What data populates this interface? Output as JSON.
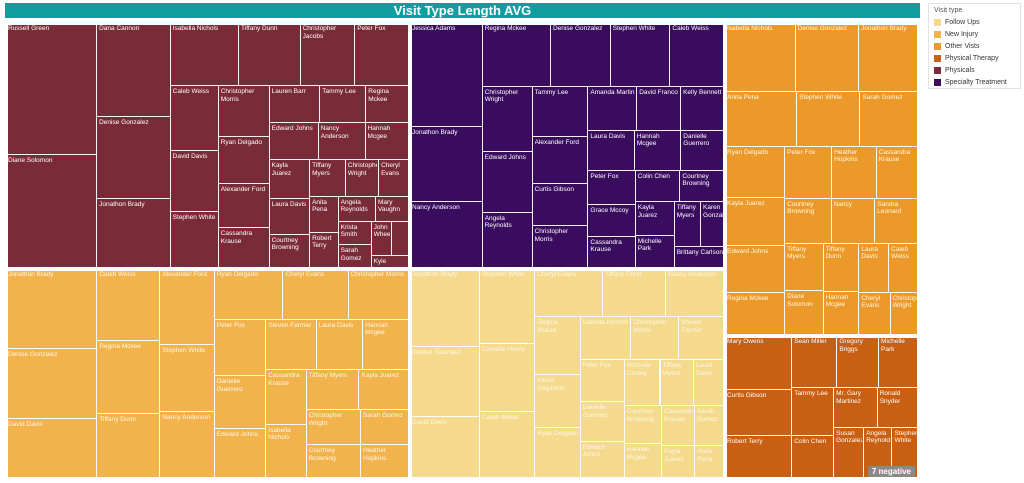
{
  "chart_data": {
    "type": "treemap",
    "title": "Visit Type Length AVG",
    "legend": {
      "title": "Visit type",
      "position": "right",
      "entries": [
        {
          "label": "Follow Ups",
          "color": "#f5d98c"
        },
        {
          "label": "New Injury",
          "color": "#f2b34d"
        },
        {
          "label": "Other Vists",
          "color": "#eb9a2a"
        },
        {
          "label": "Physical Therapy",
          "color": "#c85f12"
        },
        {
          "label": "Physicals",
          "color": "#7a2b38"
        },
        {
          "label": "Specialty Treatment",
          "color": "#3a0c5e"
        }
      ]
    },
    "annotation": "7 negative",
    "groups": [
      {
        "name": "Physicals",
        "color": "#7a2b38",
        "weight": 0.27,
        "items": [
          {
            "label": "Russell Green",
            "value": 14
          },
          {
            "label": "Diane Solomon",
            "value": 12
          },
          {
            "label": "Dana Cannon",
            "value": 8
          },
          {
            "label": "Denise Gonzalez",
            "value": 7
          },
          {
            "label": "Jonathon Brady",
            "value": 6
          },
          {
            "label": "Isabella Nichols",
            "value": 5
          },
          {
            "label": "Tiffany Dunn",
            "value": 4.5
          },
          {
            "label": "Christopher Jacobs",
            "value": 4
          },
          {
            "label": "Peter Fox",
            "value": 4
          },
          {
            "label": "Caleb Weiss",
            "value": 3.6
          },
          {
            "label": "David Davis",
            "value": 3.4
          },
          {
            "label": "Stephen White",
            "value": 3.2
          },
          {
            "label": "Christopher Morris",
            "value": 3.0
          },
          {
            "label": "Ryan Delgado",
            "value": 2.8
          },
          {
            "label": "Alexander Ford",
            "value": 2.6
          },
          {
            "label": "Cassandra Krause",
            "value": 2.4
          },
          {
            "label": "Lauren Barr",
            "value": 2.2
          },
          {
            "label": "Tammy Lee",
            "value": 2.0
          },
          {
            "label": "Regina Mckee",
            "value": 1.9
          },
          {
            "label": "Edward Johns",
            "value": 2.1
          },
          {
            "label": "Nancy Anderson",
            "value": 2.0
          },
          {
            "label": "Hannah Mcgee",
            "value": 1.9
          },
          {
            "label": "Kayla Juarez",
            "value": 1.8
          },
          {
            "label": "Laura Davis",
            "value": 1.7
          },
          {
            "label": "Courtney Browning",
            "value": 1.6
          },
          {
            "label": "Tiffany Myers",
            "value": 1.5
          },
          {
            "label": "Christopher Wright",
            "value": 1.4
          },
          {
            "label": "Cheryl Evans",
            "value": 1.3
          },
          {
            "label": "Anita Pena",
            "value": 1.2
          },
          {
            "label": "Robert Terry",
            "value": 1.2
          },
          {
            "label": "Angela Reynolds",
            "value": 1.1
          },
          {
            "label": "Mary Vaughn",
            "value": 1.0
          },
          {
            "label": "Krista Smith",
            "value": 0.9
          },
          {
            "label": "Sarah Gomez",
            "value": 0.9
          },
          {
            "label": "John Wheeler",
            "value": 0.8
          },
          {
            "label": "Sandra Leonard",
            "value": 0.7
          },
          {
            "label": "Kyle",
            "value": 0.6
          }
        ]
      },
      {
        "name": "Specialty Treatment",
        "color": "#3a0c5e",
        "weight": 0.17,
        "items": [
          {
            "label": "Jessica Adams",
            "value": 7
          },
          {
            "label": "Jonathon Brady",
            "value": 5
          },
          {
            "label": "Nancy Anderson",
            "value": 4.5
          },
          {
            "label": "Regina Mckee",
            "value": 4
          },
          {
            "label": "Denise Gonzalez",
            "value": 3.5
          },
          {
            "label": "Stephen White",
            "value": 3.5
          },
          {
            "label": "Caleb Weiss",
            "value": 3.2
          },
          {
            "label": "Christopher Wright",
            "value": 3.0
          },
          {
            "label": "Edward Johns",
            "value": 2.8
          },
          {
            "label": "Angela Reynolds",
            "value": 2.6
          },
          {
            "label": "Tammy Lee",
            "value": 2.6
          },
          {
            "label": "Alexander Ford",
            "value": 2.4
          },
          {
            "label": "Curtis Gibson",
            "value": 2.2
          },
          {
            "label": "Christopher Morris",
            "value": 2.2
          },
          {
            "label": "Amanda Martin",
            "value": 2.0
          },
          {
            "label": "David Franco",
            "value": 1.8
          },
          {
            "label": "Kelly Bennett",
            "value": 1.8
          },
          {
            "label": "Laura Davis",
            "value": 1.7
          },
          {
            "label": "Hannah Mcgee",
            "value": 1.7
          },
          {
            "label": "Danielle Guerrero",
            "value": 1.6
          },
          {
            "label": "Peter Fox",
            "value": 1.5
          },
          {
            "label": "Grace Mccoy",
            "value": 1.4
          },
          {
            "label": "Cassandra Krause",
            "value": 1.4
          },
          {
            "label": "Colin Chen",
            "value": 1.3
          },
          {
            "label": "Courtney Browning",
            "value": 1.3
          },
          {
            "label": "Kayla Juarez",
            "value": 1.2
          },
          {
            "label": "Michelle Park",
            "value": 1.2
          },
          {
            "label": "Tiffany Myers",
            "value": 1.1
          },
          {
            "label": "Karen Gonzalez",
            "value": 1.0
          },
          {
            "label": "Brittany Carlson",
            "value": 1.0
          }
        ]
      },
      {
        "name": "Other Vists",
        "color": "#eb9a2a",
        "weight": 0.072,
        "items": [
          {
            "label": "Isabella Nichols",
            "value": 4
          },
          {
            "label": "Denise Gonzalez",
            "value": 3.6
          },
          {
            "label": "Jonathon Brady",
            "value": 3.4
          },
          {
            "label": "Anita Pena",
            "value": 3.2
          },
          {
            "label": "Stephen White",
            "value": 2.8
          },
          {
            "label": "Sarah Gomez",
            "value": 2.6
          },
          {
            "label": "Ryan Delgado",
            "value": 2.5
          },
          {
            "label": "Kayla Juarez",
            "value": 2.4
          },
          {
            "label": "Edward Johns",
            "value": 2.3
          },
          {
            "label": "Regina Mckee",
            "value": 2.1
          },
          {
            "label": "Peter Fox",
            "value": 2.0
          },
          {
            "label": "Heather Hopkins",
            "value": 1.9
          },
          {
            "label": "Cassandra Krause",
            "value": 1.8
          },
          {
            "label": "Courtney Browning",
            "value": 1.7
          },
          {
            "label": "Nancy",
            "value": 1.6
          },
          {
            "label": "Sandra Leonard",
            "value": 1.6
          },
          {
            "label": "Tiffany Myers",
            "value": 1.5
          },
          {
            "label": "Diane Solomon",
            "value": 1.4
          },
          {
            "label": "Tiffany Dunn",
            "value": 1.4
          },
          {
            "label": "Hannah Mcgee",
            "value": 1.3
          },
          {
            "label": "Laura Davis",
            "value": 1.2
          },
          {
            "label": "Caleb Weiss",
            "value": 1.2
          },
          {
            "label": "Cheryl Evans",
            "value": 1.1
          },
          {
            "label": "Christopher Wright",
            "value": 1.0
          }
        ]
      },
      {
        "name": "New Injury",
        "color": "#f2b34d",
        "weight": 0.267,
        "items": [
          {
            "label": "Jonathon Brady",
            "value": 8
          },
          {
            "label": "Denise Gonzalez",
            "value": 7
          },
          {
            "label": "David Davis",
            "value": 6
          },
          {
            "label": "Caleb Weiss",
            "value": 5
          },
          {
            "label": "Regina Mckee",
            "value": 5
          },
          {
            "label": "Tiffany Dunn",
            "value": 4.5
          },
          {
            "label": "Alexander Ford",
            "value": 4.5
          },
          {
            "label": "Stephen White",
            "value": 4
          },
          {
            "label": "Nancy Anderson",
            "value": 4
          },
          {
            "label": "Ryan Delgado",
            "value": 3.8
          },
          {
            "label": "Cheryl Evans",
            "value": 3.6
          },
          {
            "label": "Christopher Morris",
            "value": 3.4
          },
          {
            "label": "Peter Fox",
            "value": 3.2
          },
          {
            "label": "Danielle Guerrero",
            "value": 3.0
          },
          {
            "label": "Edward Johns",
            "value": 2.8
          },
          {
            "label": "Steven Farmer",
            "value": 2.8
          },
          {
            "label": "Laura Davis",
            "value": 2.6
          },
          {
            "label": "Hannah Mcgee",
            "value": 2.6
          },
          {
            "label": "Cassandra Krause",
            "value": 2.4
          },
          {
            "label": "Isabella Nichols",
            "value": 2.4
          },
          {
            "label": "Tiffany Myers",
            "value": 2.3
          },
          {
            "label": "Kayla Juarez",
            "value": 2.2
          },
          {
            "label": "Christopher Wright",
            "value": 2.1
          },
          {
            "label": "Courtney Browning",
            "value": 2.0
          },
          {
            "label": "Sarah Gomez",
            "value": 1.9
          },
          {
            "label": "Heather Hopkins",
            "value": 1.8
          }
        ]
      },
      {
        "name": "Follow Ups",
        "color": "#f5d98c",
        "weight": 0.163,
        "items": [
          {
            "label": "Jonathon Brady",
            "value": 5
          },
          {
            "label": "Denise Gonzalez",
            "value": 4.5
          },
          {
            "label": "David Davis",
            "value": 4
          },
          {
            "label": "Stephen White",
            "value": 3.8
          },
          {
            "label": "Danielle Henry",
            "value": 3.4
          },
          {
            "label": "Caleb Weiss",
            "value": 3.4
          },
          {
            "label": "Cheryl Evans",
            "value": 3.0
          },
          {
            "label": "Tiffany Dunn",
            "value": 2.8
          },
          {
            "label": "Nancy Anderson",
            "value": 2.6
          },
          {
            "label": "Regina Mckee",
            "value": 2.4
          },
          {
            "label": "Alexis Stephens",
            "value": 2.2
          },
          {
            "label": "Ryan Delgado",
            "value": 2.1
          },
          {
            "label": "Isabella Nichols",
            "value": 2.0
          },
          {
            "label": "Christopher Morris",
            "value": 1.9
          },
          {
            "label": "Steven Farmer",
            "value": 1.8
          },
          {
            "label": "Peter Fox",
            "value": 1.7
          },
          {
            "label": "Danielle Guerrero",
            "value": 1.6
          },
          {
            "label": "Edward Johns",
            "value": 1.5
          },
          {
            "label": "Michelle Cooley",
            "value": 1.5
          },
          {
            "label": "Tiffany Myers",
            "value": 1.4
          },
          {
            "label": "Laura Davis",
            "value": 1.3
          },
          {
            "label": "Courtney Browning",
            "value": 1.3
          },
          {
            "label": "Hannah Mcgee",
            "value": 1.2
          },
          {
            "label": "Cassandra Krause",
            "value": 1.2
          },
          {
            "label": "Sarah Gomez",
            "value": 1.1
          },
          {
            "label": "Kayla Juarez",
            "value": 1.0
          },
          {
            "label": "Anita Pena",
            "value": 0.9
          }
        ]
      },
      {
        "name": "Physical Therapy",
        "color": "#c85f12",
        "weight": 0.058,
        "items": [
          {
            "label": "Mary Owens",
            "value": 4
          },
          {
            "label": "Curtis Gibson",
            "value": 3.4
          },
          {
            "label": "Robert Terry",
            "value": 3.2
          },
          {
            "label": "Sean Miller",
            "value": 2.6
          },
          {
            "label": "Gregory Briggs",
            "value": 2.4
          },
          {
            "label": "Michelle Park",
            "value": 2.3
          },
          {
            "label": "Tammy Lee",
            "value": 2.2
          },
          {
            "label": "Colin Chen",
            "value": 2.0
          },
          {
            "label": "Mr. Gary Martinez",
            "value": 1.9
          },
          {
            "label": "Ronald Snyder",
            "value": 1.8
          },
          {
            "label": "Susan Gonzalez",
            "value": 1.7
          },
          {
            "label": "Angela Reynolds",
            "value": 1.6
          },
          {
            "label": "Stephen White",
            "value": 1.5
          }
        ]
      }
    ]
  }
}
